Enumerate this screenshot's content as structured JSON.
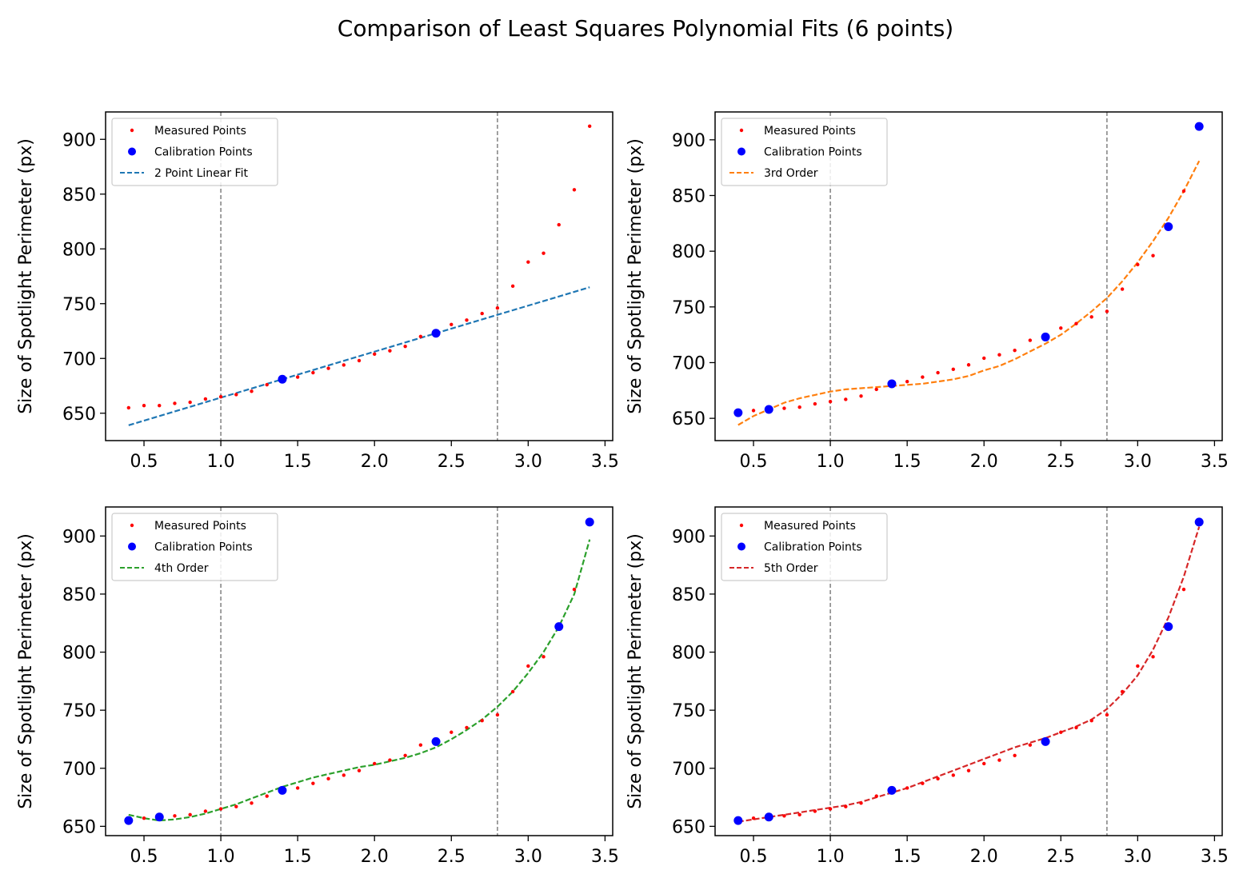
{
  "figure": {
    "suptitle": "Comparison of Least Squares Polynomial Fits (6 points)"
  },
  "colors": {
    "measured": "#ff0000",
    "calibration": "#0000ff",
    "vline": "#808080",
    "fit_linear": "#1f77b4",
    "fit_3rd": "#ff7f0e",
    "fit_4th": "#2ca02c",
    "fit_5th": "#d62728"
  },
  "chart_data": [
    {
      "type": "scatter",
      "panel": "top-left",
      "title": "",
      "xlabel": "",
      "ylabel": "Size of Spotlight Perimeter (px)",
      "xlim": [
        0.25,
        3.55
      ],
      "ylim": [
        625,
        925
      ],
      "xticks": [
        0.5,
        1.0,
        1.5,
        2.0,
        2.5,
        3.0,
        3.5
      ],
      "xtick_labels": [
        "0.5",
        "1.0",
        "1.5",
        "2.0",
        "2.5",
        "3.0",
        "3.5"
      ],
      "yticks": [
        650,
        700,
        750,
        800,
        850,
        900
      ],
      "ytick_labels": [
        "650",
        "700",
        "750",
        "800",
        "850",
        "900"
      ],
      "vlines": [
        1.0,
        2.8
      ],
      "legend_position": "top-left",
      "grid": false,
      "series": [
        {
          "name": "Measured Points",
          "kind": "points",
          "x": [
            0.4,
            0.5,
            0.6,
            0.7,
            0.8,
            0.9,
            1.0,
            1.1,
            1.2,
            1.3,
            1.4,
            1.5,
            1.6,
            1.7,
            1.8,
            1.9,
            2.0,
            2.1,
            2.2,
            2.3,
            2.4,
            2.5,
            2.6,
            2.7,
            2.8,
            2.9,
            3.0,
            3.1,
            3.2,
            3.3,
            3.4
          ],
          "y": [
            655,
            657,
            657,
            659,
            660,
            663,
            665,
            667,
            670,
            676,
            680,
            683,
            687,
            691,
            694,
            698,
            704,
            707,
            711,
            720,
            723,
            731,
            735,
            741,
            746,
            766,
            788,
            796,
            822,
            854,
            912
          ]
        },
        {
          "name": "Calibration Points",
          "kind": "points",
          "x": [
            1.4,
            2.4
          ],
          "y": [
            681,
            723
          ]
        },
        {
          "name": "2 Point Linear Fit",
          "kind": "line",
          "line_style": "dashed",
          "x": [
            0.4,
            3.4
          ],
          "y": [
            639,
            765
          ]
        }
      ]
    },
    {
      "type": "scatter",
      "panel": "top-right",
      "title": "",
      "xlabel": "",
      "ylabel": "Size of Spotlight Perimeter (px)",
      "xlim": [
        0.25,
        3.55
      ],
      "ylim": [
        630,
        925
      ],
      "xticks": [
        0.5,
        1.0,
        1.5,
        2.0,
        2.5,
        3.0,
        3.5
      ],
      "xtick_labels": [
        "0.5",
        "1.0",
        "1.5",
        "2.0",
        "2.5",
        "3.0",
        "3.5"
      ],
      "yticks": [
        650,
        700,
        750,
        800,
        850,
        900
      ],
      "ytick_labels": [
        "650",
        "700",
        "750",
        "800",
        "850",
        "900"
      ],
      "vlines": [
        1.0,
        2.8
      ],
      "legend_position": "top-left",
      "grid": false,
      "series": [
        {
          "name": "Measured Points",
          "kind": "points",
          "x": [
            0.4,
            0.5,
            0.6,
            0.7,
            0.8,
            0.9,
            1.0,
            1.1,
            1.2,
            1.3,
            1.4,
            1.5,
            1.6,
            1.7,
            1.8,
            1.9,
            2.0,
            2.1,
            2.2,
            2.3,
            2.4,
            2.5,
            2.6,
            2.7,
            2.8,
            2.9,
            3.0,
            3.1,
            3.2,
            3.3,
            3.4
          ],
          "y": [
            655,
            657,
            657,
            659,
            660,
            663,
            665,
            667,
            670,
            676,
            680,
            683,
            687,
            691,
            694,
            698,
            704,
            707,
            711,
            720,
            723,
            731,
            735,
            741,
            746,
            766,
            788,
            796,
            822,
            854,
            912
          ]
        },
        {
          "name": "Calibration Points",
          "kind": "points",
          "x": [
            0.4,
            0.6,
            1.4,
            2.4,
            3.2,
            3.4
          ],
          "y": [
            655,
            658,
            681,
            723,
            822,
            912
          ]
        },
        {
          "name": "3rd Order",
          "kind": "line",
          "line_style": "dashed",
          "x": [
            0.4,
            0.5,
            0.6,
            0.7,
            0.8,
            0.9,
            1.0,
            1.1,
            1.2,
            1.3,
            1.4,
            1.5,
            1.6,
            1.7,
            1.8,
            1.9,
            2.0,
            2.1,
            2.2,
            2.3,
            2.4,
            2.5,
            2.6,
            2.7,
            2.8,
            2.9,
            3.0,
            3.1,
            3.2,
            3.3,
            3.4
          ],
          "y": [
            644,
            652,
            658,
            664,
            668,
            671,
            674,
            676,
            677,
            678,
            679,
            680,
            681,
            683,
            685,
            688,
            693,
            697,
            703,
            710,
            717,
            725,
            735,
            746,
            758,
            773,
            790,
            809,
            830,
            854,
            881
          ]
        }
      ]
    },
    {
      "type": "scatter",
      "panel": "bottom-left",
      "title": "",
      "xlabel": "",
      "ylabel": "Size of Spotlight Perimeter (px)",
      "xlim": [
        0.25,
        3.55
      ],
      "ylim": [
        642,
        925
      ],
      "xticks": [
        0.5,
        1.0,
        1.5,
        2.0,
        2.5,
        3.0,
        3.5
      ],
      "xtick_labels": [
        "0.5",
        "1.0",
        "1.5",
        "2.0",
        "2.5",
        "3.0",
        "3.5"
      ],
      "yticks": [
        650,
        700,
        750,
        800,
        850,
        900
      ],
      "ytick_labels": [
        "650",
        "700",
        "750",
        "800",
        "850",
        "900"
      ],
      "vlines": [
        1.0,
        2.8
      ],
      "legend_position": "top-left",
      "grid": false,
      "series": [
        {
          "name": "Measured Points",
          "kind": "points",
          "x": [
            0.4,
            0.5,
            0.6,
            0.7,
            0.8,
            0.9,
            1.0,
            1.1,
            1.2,
            1.3,
            1.4,
            1.5,
            1.6,
            1.7,
            1.8,
            1.9,
            2.0,
            2.1,
            2.2,
            2.3,
            2.4,
            2.5,
            2.6,
            2.7,
            2.8,
            2.9,
            3.0,
            3.1,
            3.2,
            3.3,
            3.4
          ],
          "y": [
            655,
            657,
            657,
            659,
            660,
            663,
            665,
            667,
            670,
            676,
            680,
            683,
            687,
            691,
            694,
            698,
            704,
            707,
            711,
            720,
            723,
            731,
            735,
            741,
            746,
            766,
            788,
            796,
            822,
            854,
            912
          ]
        },
        {
          "name": "Calibration Points",
          "kind": "points",
          "x": [
            0.4,
            0.6,
            1.4,
            2.4,
            3.2,
            3.4
          ],
          "y": [
            655,
            658,
            681,
            723,
            822,
            912
          ]
        },
        {
          "name": "4th Order",
          "kind": "line",
          "line_style": "dashed",
          "x": [
            0.4,
            0.5,
            0.6,
            0.7,
            0.8,
            0.9,
            1.0,
            1.1,
            1.2,
            1.3,
            1.4,
            1.5,
            1.6,
            1.7,
            1.8,
            1.9,
            2.0,
            2.1,
            2.2,
            2.3,
            2.4,
            2.5,
            2.6,
            2.7,
            2.8,
            2.9,
            3.0,
            3.1,
            3.2,
            3.3,
            3.4
          ],
          "y": [
            660,
            657,
            655,
            656,
            658,
            661,
            665,
            669,
            674,
            679,
            684,
            688,
            692,
            695,
            698,
            701,
            703,
            706,
            709,
            713,
            718,
            725,
            733,
            742,
            753,
            766,
            782,
            800,
            822,
            850,
            897
          ]
        }
      ]
    },
    {
      "type": "scatter",
      "panel": "bottom-right",
      "title": "",
      "xlabel": "",
      "ylabel": "Size of Spotlight Perimeter (px)",
      "xlim": [
        0.25,
        3.55
      ],
      "ylim": [
        642,
        925
      ],
      "xticks": [
        0.5,
        1.0,
        1.5,
        2.0,
        2.5,
        3.0,
        3.5
      ],
      "xtick_labels": [
        "0.5",
        "1.0",
        "1.5",
        "2.0",
        "2.5",
        "3.0",
        "3.5"
      ],
      "yticks": [
        650,
        700,
        750,
        800,
        850,
        900
      ],
      "ytick_labels": [
        "650",
        "700",
        "750",
        "800",
        "850",
        "900"
      ],
      "vlines": [
        1.0,
        2.8
      ],
      "legend_position": "top-left",
      "grid": false,
      "series": [
        {
          "name": "Measured Points",
          "kind": "points",
          "x": [
            0.4,
            0.5,
            0.6,
            0.7,
            0.8,
            0.9,
            1.0,
            1.1,
            1.2,
            1.3,
            1.4,
            1.5,
            1.6,
            1.7,
            1.8,
            1.9,
            2.0,
            2.1,
            2.2,
            2.3,
            2.4,
            2.5,
            2.6,
            2.7,
            2.8,
            2.9,
            3.0,
            3.1,
            3.2,
            3.3,
            3.4
          ],
          "y": [
            655,
            657,
            657,
            659,
            660,
            663,
            665,
            667,
            670,
            676,
            680,
            683,
            687,
            691,
            694,
            698,
            704,
            707,
            711,
            720,
            723,
            731,
            735,
            741,
            746,
            766,
            788,
            796,
            822,
            854,
            912
          ]
        },
        {
          "name": "Calibration Points",
          "kind": "points",
          "x": [
            0.4,
            0.6,
            1.4,
            2.4,
            3.2,
            3.4
          ],
          "y": [
            655,
            658,
            681,
            723,
            822,
            912
          ]
        },
        {
          "name": "5th Order",
          "kind": "line",
          "line_style": "dashed",
          "x": [
            0.4,
            0.5,
            0.6,
            0.7,
            0.8,
            0.9,
            1.0,
            1.1,
            1.2,
            1.3,
            1.4,
            1.5,
            1.6,
            1.7,
            1.8,
            1.9,
            2.0,
            2.1,
            2.2,
            2.3,
            2.4,
            2.5,
            2.6,
            2.7,
            2.8,
            2.9,
            3.0,
            3.1,
            3.2,
            3.3,
            3.4
          ],
          "y": [
            654,
            656,
            658,
            660,
            662,
            664,
            666,
            668,
            671,
            675,
            679,
            683,
            688,
            693,
            698,
            703,
            708,
            713,
            718,
            722,
            726,
            731,
            736,
            742,
            751,
            764,
            780,
            802,
            830,
            865,
            908
          ]
        }
      ]
    }
  ]
}
